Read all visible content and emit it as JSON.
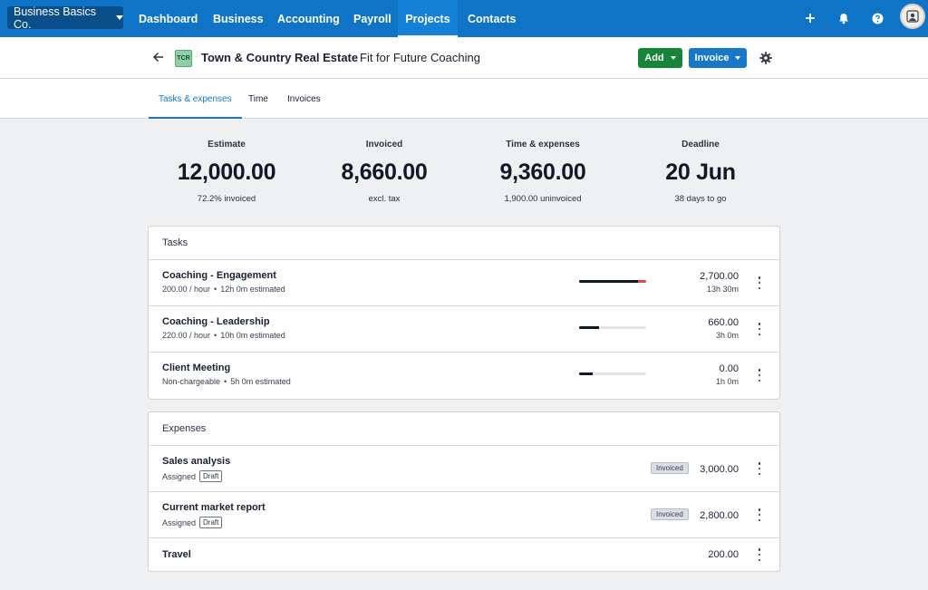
{
  "org": {
    "name": "Business Basics Co."
  },
  "nav": {
    "items": [
      {
        "label": "Dashboard"
      },
      {
        "label": "Business"
      },
      {
        "label": "Accounting"
      },
      {
        "label": "Payroll"
      },
      {
        "label": "Projects"
      },
      {
        "label": "Contacts"
      }
    ],
    "icons": [
      "plus-icon",
      "bell-icon",
      "help-icon",
      "avatar"
    ]
  },
  "header": {
    "client_initials": "TCR",
    "client_name": "Town & Country Real Estate",
    "project_name": "Fit for Future Coaching",
    "add_label": "Add",
    "invoice_label": "Invoice"
  },
  "tabs": [
    {
      "label": "Tasks & expenses"
    },
    {
      "label": "Time"
    },
    {
      "label": "Invoices"
    }
  ],
  "stats": [
    {
      "label": "Estimate",
      "value": "12,000.00",
      "sub": "72.2% invoiced"
    },
    {
      "label": "Invoiced",
      "value": "8,660.00",
      "sub": "excl. tax"
    },
    {
      "label": "Time & expenses",
      "value": "9,360.00",
      "sub": "1,900.00 uninvoiced"
    },
    {
      "label": "Deadline",
      "value": "20 Jun",
      "sub": "38 days to go"
    }
  ],
  "tasks": {
    "title": "Tasks",
    "rows": [
      {
        "name": "Coaching - Engagement",
        "rate": "200.00 / hour",
        "estimate": "12h 0m estimated",
        "amount": "2,700.00",
        "time": "13h 30m",
        "progress": 1.0,
        "overrun": 0.125
      },
      {
        "name": "Coaching - Leadership",
        "rate": "220.00 / hour",
        "estimate": "10h 0m estimated",
        "amount": "660.00",
        "time": "3h 0m",
        "progress": 0.3,
        "overrun": 0
      },
      {
        "name": "Client Meeting",
        "rate": "Non-chargeable",
        "estimate": "5h 0m estimated",
        "amount": "0.00",
        "time": "1h 0m",
        "progress": 0.2,
        "overrun": 0
      }
    ]
  },
  "expenses": {
    "title": "Expenses",
    "rows": [
      {
        "name": "Sales analysis",
        "status": "Assigned",
        "tag": "Draft",
        "badge": "Invoiced",
        "amount": "3,000.00"
      },
      {
        "name": "Current market report",
        "status": "Assigned",
        "tag": "Draft",
        "badge": "Invoiced",
        "amount": "2,800.00"
      },
      {
        "name": "Travel",
        "amount": "200.00"
      }
    ]
  },
  "separator": "•"
}
